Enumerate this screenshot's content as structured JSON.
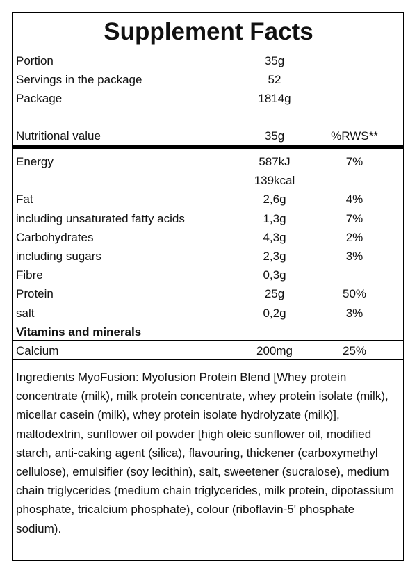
{
  "title": "Supplement Facts",
  "info": [
    {
      "label": "Portion",
      "value": "35g"
    },
    {
      "label": "Servings in the package",
      "value": "52"
    },
    {
      "label": "Package",
      "value": "1814g"
    }
  ],
  "header": {
    "label": "Nutritional value",
    "amount": "35g",
    "rws": "%RWS**"
  },
  "nutrients": [
    {
      "label": "Energy",
      "amount": "587kJ",
      "rws": "7%"
    },
    {
      "amount": "139kcal"
    },
    {
      "label": "Fat",
      "amount": "2,6g",
      "rws": "4%"
    },
    {
      "label": "including unsaturated fatty acids",
      "amount": "1,3g",
      "rws": "7%"
    },
    {
      "label": "Carbohydrates",
      "amount": "4,3g",
      "rws": "2%"
    },
    {
      "label": "including sugars",
      "amount": "2,3g",
      "rws": "3%"
    },
    {
      "label": "Fibre",
      "amount": "0,3g"
    },
    {
      "label": "Protein",
      "amount": "25g",
      "rws": "50%"
    },
    {
      "label": "salt",
      "amount": "0,2g",
      "rws": "3%"
    }
  ],
  "section_title": "Vitamins and minerals",
  "section_rows": [
    {
      "label": "Calcium",
      "amount": "200mg",
      "rws": "25%"
    }
  ],
  "ingredients": "Ingredients MyoFusion: Myofusion Protein Blend [Whey protein concentrate (milk), milk protein concentrate, whey protein isolate (milk), micellar casein (milk), whey protein isolate hydrolyzate (milk)], maltodextrin, sunflower oil powder [high oleic sunflower oil, modified starch, anti-caking agent (silica), flavouring, thickener (carboxymethyl cellulose), emulsifier (soy lecithin), salt, sweetener (sucralose), medium chain triglycerides (medium chain triglycerides, milk protein, dipotassium phosphate, tricalcium phosphate), colour (riboflavin-5' phosphate sodium)."
}
